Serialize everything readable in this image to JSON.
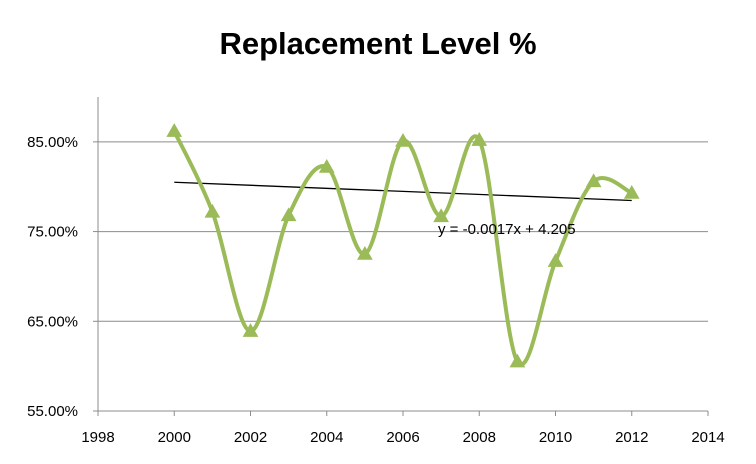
{
  "chart_data": {
    "type": "scatter",
    "title": "Replacement Level %",
    "xlabel": "",
    "ylabel": "",
    "xlim": [
      1998,
      2014
    ],
    "ylim": [
      0.55,
      0.9
    ],
    "x_ticks": [
      1998,
      2000,
      2002,
      2004,
      2006,
      2008,
      2010,
      2012,
      2014
    ],
    "x_tick_labels": [
      "1998",
      "2000",
      "2002",
      "2004",
      "2006",
      "2008",
      "2010",
      "2012",
      "2014"
    ],
    "y_ticks": [
      0.55,
      0.65,
      0.75,
      0.85
    ],
    "y_tick_labels": [
      "55.00%",
      "65.00%",
      "75.00%",
      "85.00%"
    ],
    "grid": true,
    "legend": "none",
    "series": [
      {
        "x": [
          2000,
          2001,
          2002,
          2003,
          2004,
          2005,
          2006,
          2007,
          2008,
          2009,
          2010,
          2011,
          2012
        ],
        "values": [
          0.862,
          0.772,
          0.639,
          0.768,
          0.822,
          0.725,
          0.851,
          0.767,
          0.852,
          0.605,
          0.717,
          0.806,
          0.793
        ],
        "color": "#9bbb59",
        "marker": "triangle",
        "line": "smooth"
      }
    ],
    "trendline": {
      "type": "linear",
      "equation": "y = -0.0017x + 4.205",
      "x_range": [
        2000,
        2012
      ],
      "slope": -0.0017,
      "intercept": 4.205,
      "color": "#000000"
    }
  }
}
